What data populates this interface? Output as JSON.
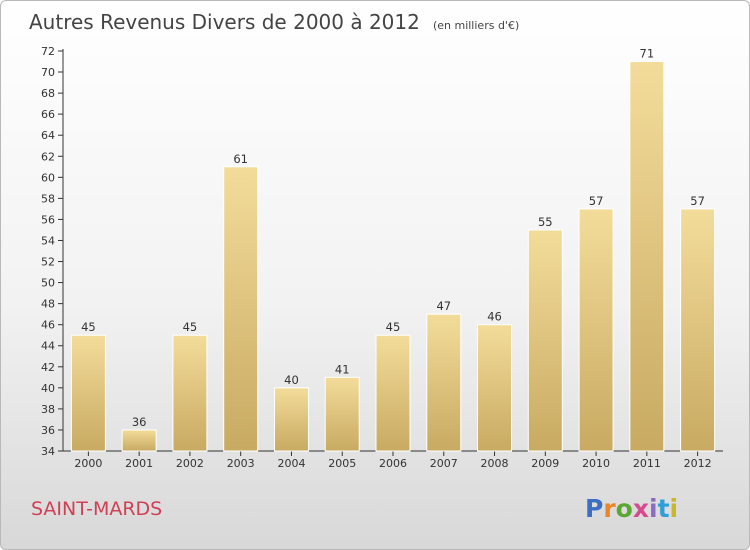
{
  "title": "Autres Revenus Divers de 2000 à 2012",
  "subtitle": "(en milliers d'€)",
  "commune": "SAINT-MARDS",
  "logo": {
    "letters": [
      "P",
      "r",
      "o",
      "x",
      "i",
      "t",
      "i"
    ],
    "colors": [
      "#3a6fc4",
      "#e8862a",
      "#5aa832",
      "#d64a8e",
      "#8a6cc0",
      "#2f9fd8",
      "#c8b62c"
    ]
  },
  "colors": {
    "bar_light": "#f3dc9a",
    "bar_dark": "#c8aa62",
    "axis": "#333333",
    "title": "#444444",
    "commune": "#d04055"
  },
  "chart_data": {
    "type": "bar",
    "categories": [
      "2000",
      "2001",
      "2002",
      "2003",
      "2004",
      "2005",
      "2006",
      "2007",
      "2008",
      "2009",
      "2010",
      "2011",
      "2012"
    ],
    "values": [
      45,
      36,
      45,
      61,
      40,
      41,
      45,
      47,
      46,
      55,
      57,
      71,
      57
    ],
    "ylim": [
      34,
      72
    ],
    "yticks": [
      34,
      36,
      38,
      40,
      42,
      44,
      46,
      48,
      50,
      52,
      54,
      56,
      58,
      60,
      62,
      64,
      66,
      68,
      70,
      72
    ],
    "title": "Autres Revenus Divers de 2000 à 2012",
    "xlabel": "",
    "ylabel": "",
    "grid": false,
    "legend": "none"
  }
}
